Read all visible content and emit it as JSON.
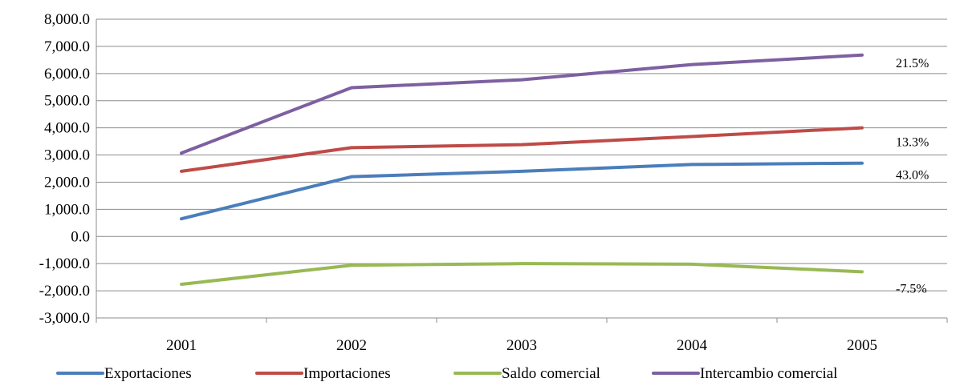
{
  "chart_data": {
    "type": "line",
    "categories": [
      "2001",
      "2002",
      "2003",
      "2004",
      "2005"
    ],
    "ylim": [
      -3000,
      8000
    ],
    "ytick_step": 1000,
    "ytick_labels": [
      "8,000.0",
      "7,000.0",
      "6,000.0",
      "5,000.0",
      "4,000.0",
      "3,000.0",
      "2,000.0",
      "1,000.0",
      "0.0",
      "-1,000.0",
      "-2,000.0",
      "-3,000.0"
    ],
    "grid": "horizontal",
    "legend_position": "bottom",
    "series": [
      {
        "name": "Exportaciones",
        "color": "#4a7ebb",
        "values": [
          650,
          2200,
          2400,
          2650,
          2700
        ],
        "end_label": "43.0%"
      },
      {
        "name": "Importaciones",
        "color": "#be4b48",
        "values": [
          2400,
          3270,
          3380,
          3680,
          4000
        ],
        "end_label": "13.3%"
      },
      {
        "name": "Saldo comercial",
        "color": "#98b954",
        "values": [
          -1760,
          -1060,
          -1000,
          -1020,
          -1300
        ],
        "end_label": "-7.5%"
      },
      {
        "name": "Intercambio comercial",
        "color": "#7d60a0",
        "values": [
          3070,
          5480,
          5770,
          6330,
          6680
        ],
        "end_label": "21.5%"
      }
    ]
  }
}
